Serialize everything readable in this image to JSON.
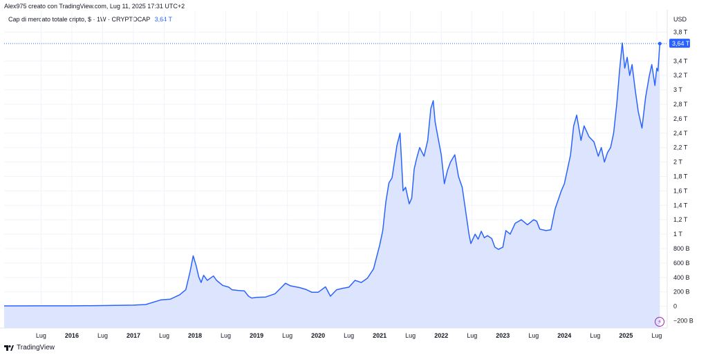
{
  "header": {
    "text": "Alex975 creato con TradingView.com, Lug 11, 2025 17:31 UTC+2"
  },
  "legend": {
    "title": "Cap di mercato totale cripto, $ · 1W · CRYPTOCAP",
    "last_value": "3,64 T"
  },
  "price_axis_label": "USD",
  "footer": {
    "brand": "TradingView"
  },
  "colors": {
    "line": "#2962ff",
    "fill": "#dce5fd",
    "label_bg": "#2962ff",
    "grid": "#f0f3fa",
    "axis_text": "#131722",
    "bolt": "#9c27b0"
  },
  "icons": {
    "footer_logo": "tradingview-logo-icon",
    "bolt": "lightning-bolt-icon"
  },
  "chart_data": {
    "type": "area",
    "title": "Cap di mercato totale cripto, $ · 1W · CRYPTOCAP",
    "xlabel": "",
    "ylabel": "USD",
    "ylim": [
      -300,
      3900
    ],
    "grid": true,
    "y_ticks": [
      {
        "value": 3800,
        "label": "3,8 T"
      },
      {
        "value": 3400,
        "label": "3,4 T"
      },
      {
        "value": 3200,
        "label": "3,2 T"
      },
      {
        "value": 3000,
        "label": "3 T"
      },
      {
        "value": 2800,
        "label": "2,8 T"
      },
      {
        "value": 2600,
        "label": "2,6 T"
      },
      {
        "value": 2400,
        "label": "2,4 T"
      },
      {
        "value": 2200,
        "label": "2,2 T"
      },
      {
        "value": 2000,
        "label": "2 T"
      },
      {
        "value": 1800,
        "label": "1,8 T"
      },
      {
        "value": 1600,
        "label": "1,6 T"
      },
      {
        "value": 1400,
        "label": "1,4 T"
      },
      {
        "value": 1200,
        "label": "1,2 T"
      },
      {
        "value": 1000,
        "label": "1 T"
      },
      {
        "value": 800,
        "label": "800 B"
      },
      {
        "value": 600,
        "label": "600 B"
      },
      {
        "value": 400,
        "label": "400 B"
      },
      {
        "value": 200,
        "label": "200 B"
      },
      {
        "value": 0,
        "label": "0"
      },
      {
        "value": -200,
        "label": "−200 B"
      }
    ],
    "x_range": [
      2014.9,
      2025.67
    ],
    "x_ticks": [
      {
        "value": 2015.5,
        "label": "Lug",
        "bold": false
      },
      {
        "value": 2016.0,
        "label": "2016",
        "bold": true
      },
      {
        "value": 2016.5,
        "label": "Lug",
        "bold": false
      },
      {
        "value": 2017.0,
        "label": "2017",
        "bold": true
      },
      {
        "value": 2017.5,
        "label": "Lug",
        "bold": false
      },
      {
        "value": 2018.0,
        "label": "2018",
        "bold": true
      },
      {
        "value": 2018.5,
        "label": "Lug",
        "bold": false
      },
      {
        "value": 2019.0,
        "label": "2019",
        "bold": true
      },
      {
        "value": 2019.5,
        "label": "Lug",
        "bold": false
      },
      {
        "value": 2020.0,
        "label": "2020",
        "bold": true
      },
      {
        "value": 2020.5,
        "label": "Lug",
        "bold": false
      },
      {
        "value": 2021.0,
        "label": "2021",
        "bold": true
      },
      {
        "value": 2021.5,
        "label": "Lug",
        "bold": false
      },
      {
        "value": 2022.0,
        "label": "2022",
        "bold": true
      },
      {
        "value": 2022.5,
        "label": "Lug",
        "bold": false
      },
      {
        "value": 2023.0,
        "label": "2023",
        "bold": true
      },
      {
        "value": 2023.5,
        "label": "Lug",
        "bold": false
      },
      {
        "value": 2024.0,
        "label": "2024",
        "bold": true
      },
      {
        "value": 2024.5,
        "label": "Lug",
        "bold": false
      },
      {
        "value": 2025.0,
        "label": "2025",
        "bold": true
      },
      {
        "value": 2025.5,
        "label": "Lug",
        "bold": false
      }
    ],
    "last_value": {
      "value": 3640,
      "label": "3,64 T"
    },
    "series": [
      {
        "values_unit": "billion USD",
        "points": [
          [
            2014.9,
            6
          ],
          [
            2015.5,
            7
          ],
          [
            2016.0,
            7
          ],
          [
            2016.5,
            11
          ],
          [
            2017.0,
            17
          ],
          [
            2017.2,
            25
          ],
          [
            2017.45,
            90
          ],
          [
            2017.6,
            100
          ],
          [
            2017.75,
            160
          ],
          [
            2017.85,
            230
          ],
          [
            2017.92,
            480
          ],
          [
            2017.97,
            700
          ],
          [
            2018.02,
            560
          ],
          [
            2018.06,
            410
          ],
          [
            2018.1,
            330
          ],
          [
            2018.14,
            430
          ],
          [
            2018.2,
            360
          ],
          [
            2018.3,
            420
          ],
          [
            2018.35,
            360
          ],
          [
            2018.45,
            290
          ],
          [
            2018.55,
            265
          ],
          [
            2018.6,
            230
          ],
          [
            2018.7,
            220
          ],
          [
            2018.8,
            215
          ],
          [
            2018.87,
            140
          ],
          [
            2018.92,
            115
          ],
          [
            2019.0,
            125
          ],
          [
            2019.15,
            130
          ],
          [
            2019.3,
            175
          ],
          [
            2019.4,
            260
          ],
          [
            2019.47,
            320
          ],
          [
            2019.55,
            285
          ],
          [
            2019.7,
            260
          ],
          [
            2019.8,
            235
          ],
          [
            2019.9,
            195
          ],
          [
            2020.0,
            195
          ],
          [
            2020.12,
            270
          ],
          [
            2020.2,
            140
          ],
          [
            2020.3,
            230
          ],
          [
            2020.4,
            250
          ],
          [
            2020.5,
            265
          ],
          [
            2020.6,
            360
          ],
          [
            2020.7,
            330
          ],
          [
            2020.8,
            390
          ],
          [
            2020.9,
            520
          ],
          [
            2021.0,
            850
          ],
          [
            2021.05,
            1050
          ],
          [
            2021.1,
            1450
          ],
          [
            2021.15,
            1710
          ],
          [
            2021.2,
            1780
          ],
          [
            2021.28,
            2230
          ],
          [
            2021.33,
            2400
          ],
          [
            2021.38,
            1600
          ],
          [
            2021.42,
            1650
          ],
          [
            2021.48,
            1420
          ],
          [
            2021.52,
            1500
          ],
          [
            2021.56,
            1900
          ],
          [
            2021.6,
            2050
          ],
          [
            2021.65,
            2200
          ],
          [
            2021.72,
            2080
          ],
          [
            2021.78,
            2300
          ],
          [
            2021.83,
            2740
          ],
          [
            2021.87,
            2850
          ],
          [
            2021.9,
            2560
          ],
          [
            2021.94,
            2370
          ],
          [
            2022.0,
            2100
          ],
          [
            2022.05,
            1700
          ],
          [
            2022.1,
            1880
          ],
          [
            2022.15,
            2000
          ],
          [
            2022.22,
            2100
          ],
          [
            2022.28,
            1800
          ],
          [
            2022.34,
            1650
          ],
          [
            2022.4,
            1300
          ],
          [
            2022.45,
            1000
          ],
          [
            2022.48,
            870
          ],
          [
            2022.55,
            1000
          ],
          [
            2022.6,
            930
          ],
          [
            2022.65,
            1040
          ],
          [
            2022.7,
            950
          ],
          [
            2022.75,
            980
          ],
          [
            2022.82,
            940
          ],
          [
            2022.87,
            820
          ],
          [
            2022.93,
            790
          ],
          [
            2023.0,
            820
          ],
          [
            2023.05,
            1050
          ],
          [
            2023.12,
            1000
          ],
          [
            2023.2,
            1150
          ],
          [
            2023.3,
            1200
          ],
          [
            2023.4,
            1130
          ],
          [
            2023.5,
            1200
          ],
          [
            2023.55,
            1180
          ],
          [
            2023.6,
            1070
          ],
          [
            2023.7,
            1050
          ],
          [
            2023.78,
            1060
          ],
          [
            2023.85,
            1350
          ],
          [
            2023.95,
            1600
          ],
          [
            2024.0,
            1700
          ],
          [
            2024.1,
            2100
          ],
          [
            2024.15,
            2500
          ],
          [
            2024.2,
            2650
          ],
          [
            2024.27,
            2300
          ],
          [
            2024.32,
            2500
          ],
          [
            2024.4,
            2350
          ],
          [
            2024.48,
            2280
          ],
          [
            2024.55,
            2080
          ],
          [
            2024.6,
            2200
          ],
          [
            2024.65,
            2000
          ],
          [
            2024.7,
            2130
          ],
          [
            2024.75,
            2200
          ],
          [
            2024.8,
            2400
          ],
          [
            2024.85,
            2800
          ],
          [
            2024.9,
            3300
          ],
          [
            2024.94,
            3650
          ],
          [
            2024.98,
            3300
          ],
          [
            2025.02,
            3450
          ],
          [
            2025.06,
            3200
          ],
          [
            2025.1,
            3350
          ],
          [
            2025.15,
            3000
          ],
          [
            2025.2,
            2700
          ],
          [
            2025.26,
            2470
          ],
          [
            2025.32,
            2900
          ],
          [
            2025.38,
            3200
          ],
          [
            2025.42,
            3350
          ],
          [
            2025.47,
            3060
          ],
          [
            2025.5,
            3300
          ],
          [
            2025.52,
            3260
          ],
          [
            2025.55,
            3640
          ]
        ]
      }
    ]
  }
}
